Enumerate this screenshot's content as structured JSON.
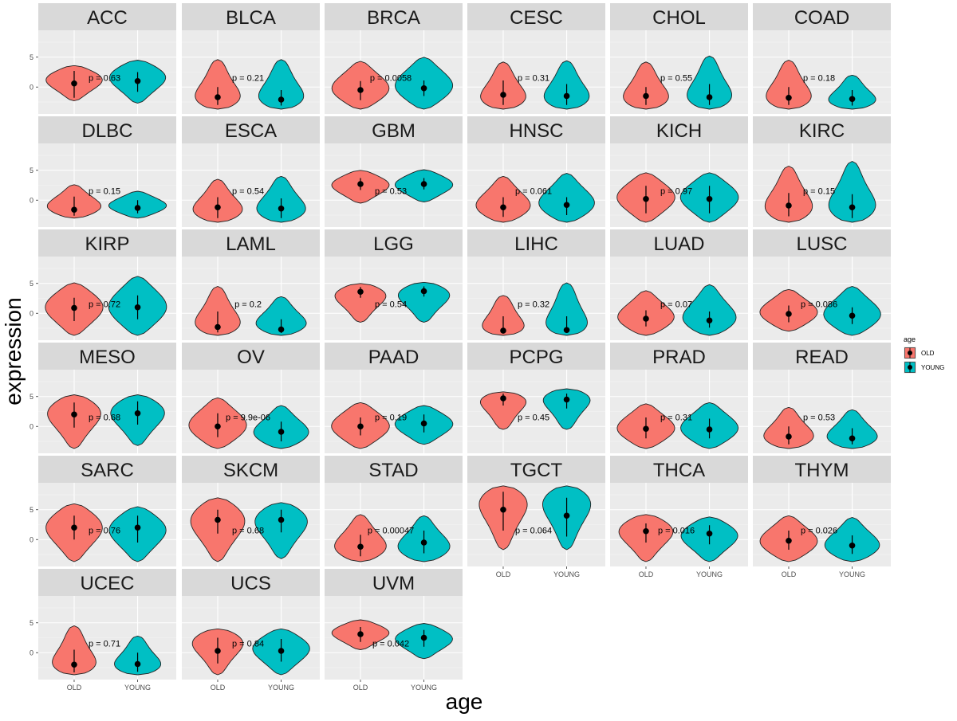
{
  "chart_data": {
    "type": "violin",
    "xlabel": "age",
    "ylabel": "expression",
    "y_ticks": [
      5,
      0
    ],
    "y_tick_labels": [
      "5",
      "0"
    ],
    "ylim": [
      -4.5,
      9.5
    ],
    "categories": [
      "OLD",
      "YOUNG"
    ],
    "legend": {
      "title": "age",
      "position": "right",
      "entries": [
        {
          "label": "OLD",
          "color": "#F8766D"
        },
        {
          "label": "YOUNG",
          "color": "#00BFC4"
        }
      ]
    },
    "facets": [
      {
        "name": "ACC",
        "p_label": "p = 0.63",
        "old": {
          "min": -2.3,
          "max": 3.6,
          "median": 0.6,
          "q1": -1.8,
          "q3": 2.7,
          "peak": 1.5
        },
        "young": {
          "min": -2.7,
          "max": 4.5,
          "median": 1.0,
          "q1": -0.8,
          "q3": 2.5,
          "peak": 2.0
        }
      },
      {
        "name": "BLCA",
        "p_label": "p = 0.21",
        "old": {
          "min": -3.7,
          "max": 4.6,
          "median": -1.7,
          "q1": -3.0,
          "q3": 0.0,
          "peak": -3.0
        },
        "young": {
          "min": -3.7,
          "max": 4.6,
          "median": -2.1,
          "q1": -3.1,
          "q3": -0.5,
          "peak": -3.0
        }
      },
      {
        "name": "BRCA",
        "p_label": "p = 0.0058",
        "old": {
          "min": -3.7,
          "max": 4.3,
          "median": -0.5,
          "q1": -2.2,
          "q3": 1.0,
          "peak": -0.5
        },
        "young": {
          "min": -3.7,
          "max": 5.0,
          "median": -0.2,
          "q1": -1.5,
          "q3": 1.1,
          "peak": 0.0
        }
      },
      {
        "name": "CESC",
        "p_label": "p = 0.31",
        "old": {
          "min": -3.7,
          "max": 4.2,
          "median": -1.3,
          "q1": -3.0,
          "q3": 1.1,
          "peak": -3.0
        },
        "young": {
          "min": -3.7,
          "max": 4.4,
          "median": -1.5,
          "q1": -3.0,
          "q3": 0.5,
          "peak": -3.0
        }
      },
      {
        "name": "CHOL",
        "p_label": "p = 0.55",
        "old": {
          "min": -3.7,
          "max": 4.2,
          "median": -1.5,
          "q1": -3.0,
          "q3": 0.0,
          "peak": -3.0
        },
        "young": {
          "min": -3.7,
          "max": 5.2,
          "median": -1.7,
          "q1": -3.0,
          "q3": 0.5,
          "peak": -3.0
        }
      },
      {
        "name": "COAD",
        "p_label": "p = 0.18",
        "old": {
          "min": -3.7,
          "max": 4.5,
          "median": -1.8,
          "q1": -3.0,
          "q3": 0.0,
          "peak": -3.0
        },
        "young": {
          "min": -3.7,
          "max": 2.0,
          "median": -2.0,
          "q1": -3.1,
          "q3": -0.5,
          "peak": -3.0
        }
      },
      {
        "name": "DLBC",
        "p_label": "p = 0.15",
        "old": {
          "min": -3.0,
          "max": 2.6,
          "median": -1.6,
          "q1": -2.6,
          "q3": 0.6,
          "peak": -1.5
        },
        "young": {
          "min": -3.0,
          "max": 1.5,
          "median": -1.3,
          "q1": -2.2,
          "q3": 0.0,
          "peak": -1.0
        }
      },
      {
        "name": "ESCA",
        "p_label": "p = 0.54",
        "old": {
          "min": -3.7,
          "max": 3.5,
          "median": -1.2,
          "q1": -3.0,
          "q3": 0.5,
          "peak": -2.5
        },
        "young": {
          "min": -3.7,
          "max": 4.0,
          "median": -1.4,
          "q1": -3.0,
          "q3": 0.3,
          "peak": -2.5
        }
      },
      {
        "name": "GBM",
        "p_label": "p = 0.53",
        "old": {
          "min": -0.5,
          "max": 5.0,
          "median": 2.7,
          "q1": 1.7,
          "q3": 3.7,
          "peak": 2.7
        },
        "young": {
          "min": -0.3,
          "max": 5.1,
          "median": 2.7,
          "q1": 1.8,
          "q3": 3.7,
          "peak": 2.7
        }
      },
      {
        "name": "HNSC",
        "p_label": "p = 0.061",
        "old": {
          "min": -3.7,
          "max": 4.0,
          "median": -1.2,
          "q1": -2.8,
          "q3": 0.5,
          "peak": -1.5
        },
        "young": {
          "min": -3.7,
          "max": 4.5,
          "median": -0.8,
          "q1": -2.5,
          "q3": 0.5,
          "peak": -1.0
        }
      },
      {
        "name": "KICH",
        "p_label": "p = 0.97",
        "old": {
          "min": -3.7,
          "max": 4.6,
          "median": 0.2,
          "q1": -2.2,
          "q3": 2.4,
          "peak": 0.5
        },
        "young": {
          "min": -3.7,
          "max": 4.6,
          "median": 0.2,
          "q1": -2.2,
          "q3": 2.4,
          "peak": 0.5
        }
      },
      {
        "name": "KIRC",
        "p_label": "p = 0.15",
        "old": {
          "min": -3.7,
          "max": 5.7,
          "median": -0.9,
          "q1": -2.7,
          "q3": 1.2,
          "peak": -2.5
        },
        "young": {
          "min": -3.7,
          "max": 6.5,
          "median": -1.2,
          "q1": -3.0,
          "q3": 1.0,
          "peak": -2.5
        }
      },
      {
        "name": "KIRP",
        "p_label": "p = 0.72",
        "old": {
          "min": -3.7,
          "max": 5.1,
          "median": 0.9,
          "q1": -1.3,
          "q3": 2.6,
          "peak": 1.2
        },
        "young": {
          "min": -3.7,
          "max": 6.2,
          "median": 1.0,
          "q1": -1.0,
          "q3": 3.0,
          "peak": 1.0
        }
      },
      {
        "name": "LAML",
        "p_label": "p = 0.2",
        "old": {
          "min": -3.7,
          "max": 4.5,
          "median": -2.3,
          "q1": -3.2,
          "q3": 0.3,
          "peak": -3.0
        },
        "young": {
          "min": -3.7,
          "max": 2.8,
          "median": -2.7,
          "q1": -3.3,
          "q3": -1.0,
          "peak": -2.5
        }
      },
      {
        "name": "LGG",
        "p_label": "p = 0.54",
        "old": {
          "min": -1.5,
          "max": 5.0,
          "median": 3.6,
          "q1": 2.6,
          "q3": 4.4,
          "peak": 3.7
        },
        "young": {
          "min": -1.5,
          "max": 5.2,
          "median": 3.7,
          "q1": 2.8,
          "q3": 4.5,
          "peak": 3.8
        }
      },
      {
        "name": "LIHC",
        "p_label": "p = 0.32",
        "old": {
          "min": -3.7,
          "max": 3.0,
          "median": -2.9,
          "q1": -3.4,
          "q3": -0.5,
          "peak": -3.5
        },
        "young": {
          "min": -3.7,
          "max": 5.1,
          "median": -2.8,
          "q1": -3.3,
          "q3": -0.5,
          "peak": -3.5
        }
      },
      {
        "name": "LUAD",
        "p_label": "p = 0.07",
        "old": {
          "min": -3.7,
          "max": 3.8,
          "median": -0.9,
          "q1": -2.2,
          "q3": 0.5,
          "peak": -1.0
        },
        "young": {
          "min": -3.7,
          "max": 4.8,
          "median": -1.2,
          "q1": -2.4,
          "q3": 0.3,
          "peak": -1.5
        }
      },
      {
        "name": "LUSC",
        "p_label": "p = 0.086",
        "old": {
          "min": -3.0,
          "max": 4.0,
          "median": -0.1,
          "q1": -1.5,
          "q3": 1.3,
          "peak": 0.0
        },
        "young": {
          "min": -3.7,
          "max": 4.5,
          "median": -0.4,
          "q1": -1.8,
          "q3": 1.0,
          "peak": -0.5
        }
      },
      {
        "name": "MESO",
        "p_label": "p = 0.68",
        "old": {
          "min": -3.7,
          "max": 5.3,
          "median": 2.0,
          "q1": -0.2,
          "q3": 4.0,
          "peak": 3.0
        },
        "young": {
          "min": -3.2,
          "max": 5.3,
          "median": 2.2,
          "q1": 0.3,
          "q3": 4.2,
          "peak": 3.0
        }
      },
      {
        "name": "OV",
        "p_label": "p = 9.9e-06",
        "old": {
          "min": -3.7,
          "max": 4.8,
          "median": 0.0,
          "q1": -1.8,
          "q3": 2.2,
          "peak": 0.0
        },
        "young": {
          "min": -3.7,
          "max": 3.5,
          "median": -0.9,
          "q1": -2.5,
          "q3": 0.8,
          "peak": -1.5
        }
      },
      {
        "name": "PAAD",
        "p_label": "p = 0.19",
        "old": {
          "min": -3.7,
          "max": 4.0,
          "median": 0.0,
          "q1": -1.5,
          "q3": 1.5,
          "peak": 0.0
        },
        "young": {
          "min": -3.0,
          "max": 3.5,
          "median": 0.5,
          "q1": -1.0,
          "q3": 2.0,
          "peak": 0.5
        }
      },
      {
        "name": "PCPG",
        "p_label": "p = 0.45",
        "old": {
          "min": -0.5,
          "max": 5.8,
          "median": 4.7,
          "q1": 3.5,
          "q3": 5.5,
          "peak": 5.2
        },
        "young": {
          "min": -0.5,
          "max": 6.3,
          "median": 4.5,
          "q1": 3.0,
          "q3": 5.5,
          "peak": 5.5
        }
      },
      {
        "name": "PRAD",
        "p_label": "p = 0.31",
        "old": {
          "min": -3.7,
          "max": 3.8,
          "median": -0.4,
          "q1": -2.0,
          "q3": 1.5,
          "peak": -0.5
        },
        "young": {
          "min": -3.7,
          "max": 4.0,
          "median": -0.5,
          "q1": -2.0,
          "q3": 1.3,
          "peak": -0.5
        }
      },
      {
        "name": "READ",
        "p_label": "p = 0.53",
        "old": {
          "min": -3.7,
          "max": 3.2,
          "median": -1.7,
          "q1": -3.0,
          "q3": 0.0,
          "peak": -2.5
        },
        "young": {
          "min": -3.7,
          "max": 2.8,
          "median": -2.0,
          "q1": -3.0,
          "q3": -0.3,
          "peak": -2.5
        }
      },
      {
        "name": "SARC",
        "p_label": "p = 0.76",
        "old": {
          "min": -3.7,
          "max": 6.0,
          "median": 2.0,
          "q1": 0.0,
          "q3": 4.0,
          "peak": 2.5
        },
        "young": {
          "min": -3.7,
          "max": 5.5,
          "median": 2.0,
          "q1": -0.5,
          "q3": 4.0,
          "peak": 2.0
        }
      },
      {
        "name": "SKCM",
        "p_label": "p = 0.68",
        "old": {
          "min": -3.7,
          "max": 7.0,
          "median": 3.3,
          "q1": 1.0,
          "q3": 5.0,
          "peak": 4.0
        },
        "young": {
          "min": -3.2,
          "max": 6.2,
          "median": 3.3,
          "q1": 1.2,
          "q3": 5.0,
          "peak": 4.0
        }
      },
      {
        "name": "STAD",
        "p_label": "p = 0.00047",
        "old": {
          "min": -3.7,
          "max": 4.2,
          "median": -1.2,
          "q1": -2.8,
          "q3": 0.8,
          "peak": -2.0
        },
        "young": {
          "min": -3.7,
          "max": 4.0,
          "median": -0.5,
          "q1": -2.3,
          "q3": 1.5,
          "peak": -2.0
        }
      },
      {
        "name": "TGCT",
        "p_label": "p = 0.064",
        "old": {
          "min": -1.7,
          "max": 9.0,
          "median": 5.0,
          "q1": 1.5,
          "q3": 8.0,
          "peak": 7.5
        },
        "young": {
          "min": -1.7,
          "max": 9.0,
          "median": 4.0,
          "q1": 0.5,
          "q3": 7.0,
          "peak": 7.5
        }
      },
      {
        "name": "THCA",
        "p_label": "p = 0.016",
        "old": {
          "min": -3.7,
          "max": 4.2,
          "median": 1.4,
          "q1": -0.5,
          "q3": 2.7,
          "peak": 2.0
        },
        "young": {
          "min": -3.7,
          "max": 3.8,
          "median": 1.0,
          "q1": -0.8,
          "q3": 2.4,
          "peak": 1.0
        }
      },
      {
        "name": "THYM",
        "p_label": "p = 0.026",
        "old": {
          "min": -3.7,
          "max": 4.0,
          "median": -0.2,
          "q1": -1.7,
          "q3": 1.5,
          "peak": -0.5
        },
        "young": {
          "min": -3.7,
          "max": 3.7,
          "median": -1.0,
          "q1": -2.4,
          "q3": 0.7,
          "peak": -1.5
        }
      },
      {
        "name": "UCEC",
        "p_label": "p = 0.71",
        "old": {
          "min": -3.7,
          "max": 4.5,
          "median": -2.0,
          "q1": -3.3,
          "q3": 0.5,
          "peak": -3.2
        },
        "young": {
          "min": -3.7,
          "max": 2.8,
          "median": -1.9,
          "q1": -3.2,
          "q3": 0.0,
          "peak": -3.0
        }
      },
      {
        "name": "UCS",
        "p_label": "p = 0.84",
        "old": {
          "min": -3.7,
          "max": 4.0,
          "median": 0.3,
          "q1": -1.8,
          "q3": 2.5,
          "peak": 2.5
        },
        "young": {
          "min": -3.7,
          "max": 4.0,
          "median": 0.3,
          "q1": -1.5,
          "q3": 2.3,
          "peak": 1.0
        }
      },
      {
        "name": "UVM",
        "p_label": "p = 0.042",
        "old": {
          "min": 0.5,
          "max": 5.5,
          "median": 3.1,
          "q1": 1.8,
          "q3": 4.3,
          "peak": 3.5
        },
        "young": {
          "min": -1.0,
          "max": 4.9,
          "median": 2.5,
          "q1": 1.0,
          "q3": 3.8,
          "peak": 2.5
        }
      }
    ]
  }
}
